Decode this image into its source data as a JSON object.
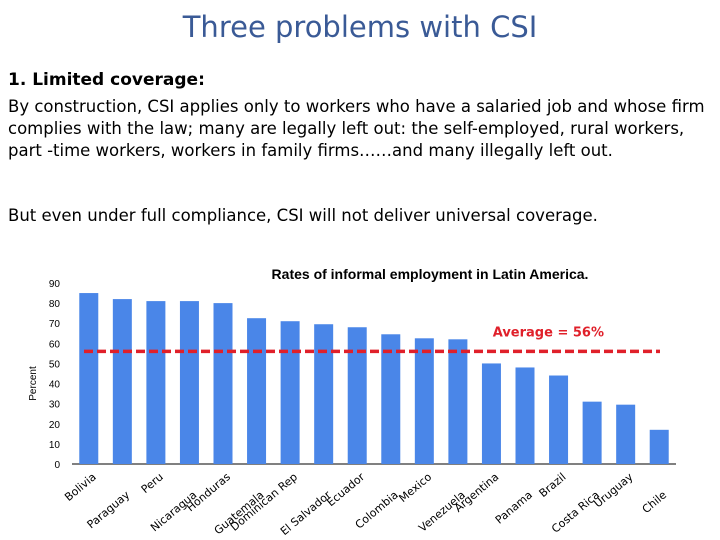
{
  "slide": {
    "title": "Three problems with CSI",
    "heading": "1. Limited coverage:",
    "paragraph": "By construction, CSI applies only to workers who have a salaried job and whose firm complies with the law; many are legally left out: the self-employed, rural workers, part -time workers, workers in family firms……and many illegally left out.",
    "paragraph2": "But even under full compliance, CSI will not deliver universal coverage."
  },
  "chart_data": {
    "type": "bar",
    "title": "Rates of informal employment in Latin America.",
    "ylabel": "Percent",
    "xlabel": "",
    "ylim": [
      0,
      90
    ],
    "yticks": [
      0,
      10,
      20,
      30,
      40,
      50,
      60,
      70,
      80,
      90
    ],
    "categories": [
      "Bolivia",
      "Paraguay",
      "Peru",
      "Nicaragua",
      "Honduras",
      "Guatemala",
      "Dominican Rep",
      "El Salvador",
      "Ecuador",
      "Colombia",
      "Mexico",
      "Venezuela",
      "Argentina",
      "Panama",
      "Brazil",
      "Costa Rica",
      "Uruguay",
      "Chile"
    ],
    "values": [
      85,
      82,
      81,
      81,
      80,
      72.5,
      71,
      69.5,
      68,
      64.5,
      62.5,
      62,
      50,
      48,
      44,
      31,
      29.5,
      17
    ],
    "bar_color": "#4a86e8",
    "average": {
      "value": 56,
      "label": "Average = 56%",
      "color": "#e0202a"
    }
  }
}
